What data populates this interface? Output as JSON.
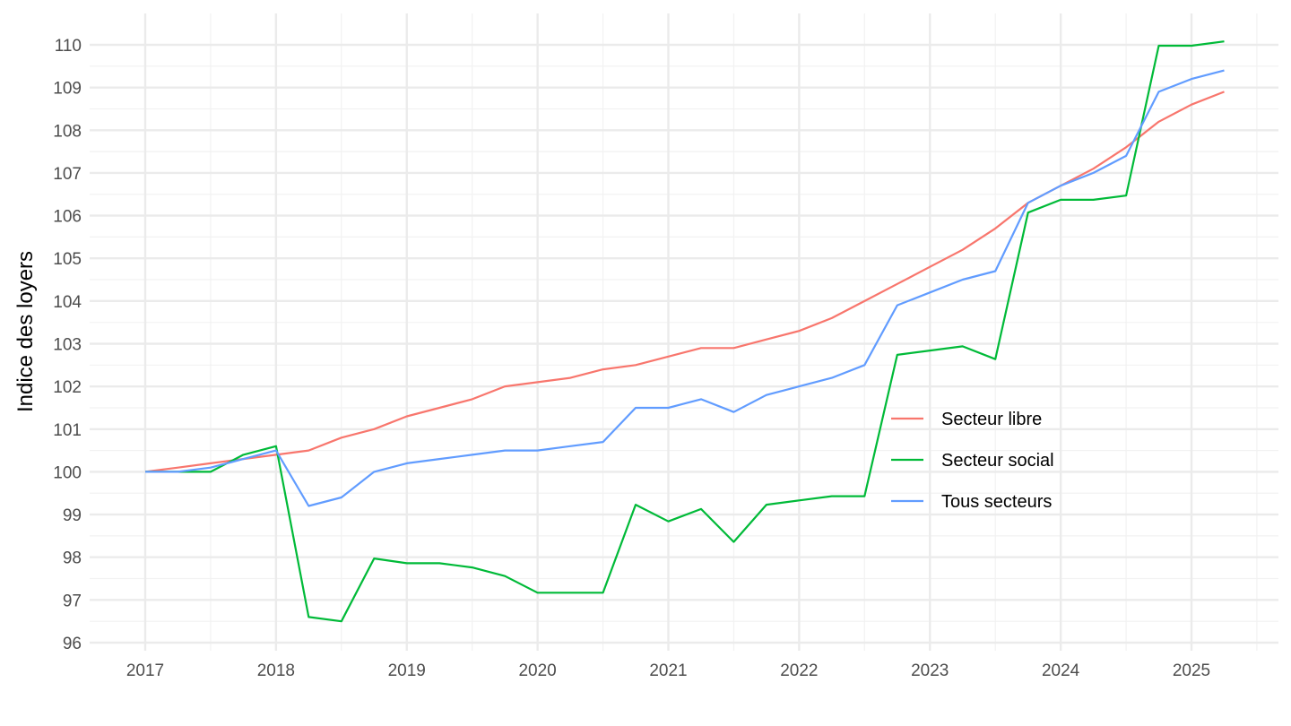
{
  "chart_data": {
    "type": "line",
    "title": "",
    "xlabel": "",
    "ylabel": "Indice des loyers",
    "xlim": [
      "2016-07",
      "2025-09"
    ],
    "ylim": [
      95.8,
      110.8
    ],
    "x_ticks": [
      "2017",
      "2018",
      "2019",
      "2020",
      "2021",
      "2022",
      "2023",
      "2024",
      "2025"
    ],
    "y_ticks": [
      96,
      97,
      98,
      99,
      100,
      101,
      102,
      103,
      104,
      105,
      106,
      107,
      108,
      109,
      110
    ],
    "grid": true,
    "legend_position": "right",
    "x": [
      "2017-Q1",
      "2017-Q2",
      "2017-Q3",
      "2017-Q4",
      "2018-Q1",
      "2018-Q2",
      "2018-Q3",
      "2018-Q4",
      "2019-Q1",
      "2019-Q2",
      "2019-Q3",
      "2019-Q4",
      "2020-Q1",
      "2020-Q2",
      "2020-Q3",
      "2020-Q4",
      "2021-Q1",
      "2021-Q2",
      "2021-Q3",
      "2021-Q4",
      "2022-Q1",
      "2022-Q2",
      "2022-Q3",
      "2022-Q4",
      "2023-Q1",
      "2023-Q2",
      "2023-Q3",
      "2023-Q4",
      "2024-Q1",
      "2024-Q2",
      "2024-Q3",
      "2024-Q4",
      "2025-Q1",
      "2025-Q2"
    ],
    "series": [
      {
        "name": "Secteur libre",
        "color": "#F8766D",
        "values": [
          100.0,
          100.1,
          100.2,
          100.3,
          100.4,
          100.5,
          100.8,
          101.0,
          101.3,
          101.5,
          101.7,
          102.0,
          102.1,
          102.2,
          102.4,
          102.5,
          102.7,
          102.9,
          102.9,
          103.1,
          103.3,
          103.6,
          104.0,
          104.4,
          104.8,
          105.2,
          105.7,
          106.3,
          106.7,
          107.1,
          107.6,
          108.2,
          108.6,
          108.9
        ]
      },
      {
        "name": "Secteur social",
        "color": "#00BA38",
        "values": [
          100.0,
          100.0,
          100.0,
          100.4,
          100.6,
          96.6,
          96.5,
          97.97,
          97.86,
          97.86,
          97.76,
          97.56,
          97.17,
          97.17,
          97.17,
          99.23,
          98.84,
          99.13,
          98.36,
          99.23,
          99.33,
          99.43,
          99.43,
          102.74,
          102.84,
          102.94,
          102.64,
          106.07,
          106.37,
          106.37,
          106.47,
          109.98,
          109.98,
          110.08
        ]
      },
      {
        "name": "Tous secteurs",
        "color": "#619CFF",
        "values": [
          100.0,
          100.0,
          100.1,
          100.3,
          100.5,
          99.2,
          99.4,
          100.0,
          100.2,
          100.3,
          100.4,
          100.5,
          100.5,
          100.6,
          100.7,
          101.5,
          101.5,
          101.7,
          101.4,
          101.8,
          102.0,
          102.2,
          102.5,
          103.9,
          104.2,
          104.5,
          104.7,
          106.3,
          106.7,
          107.0,
          107.4,
          108.9,
          109.2,
          109.4
        ]
      }
    ]
  }
}
